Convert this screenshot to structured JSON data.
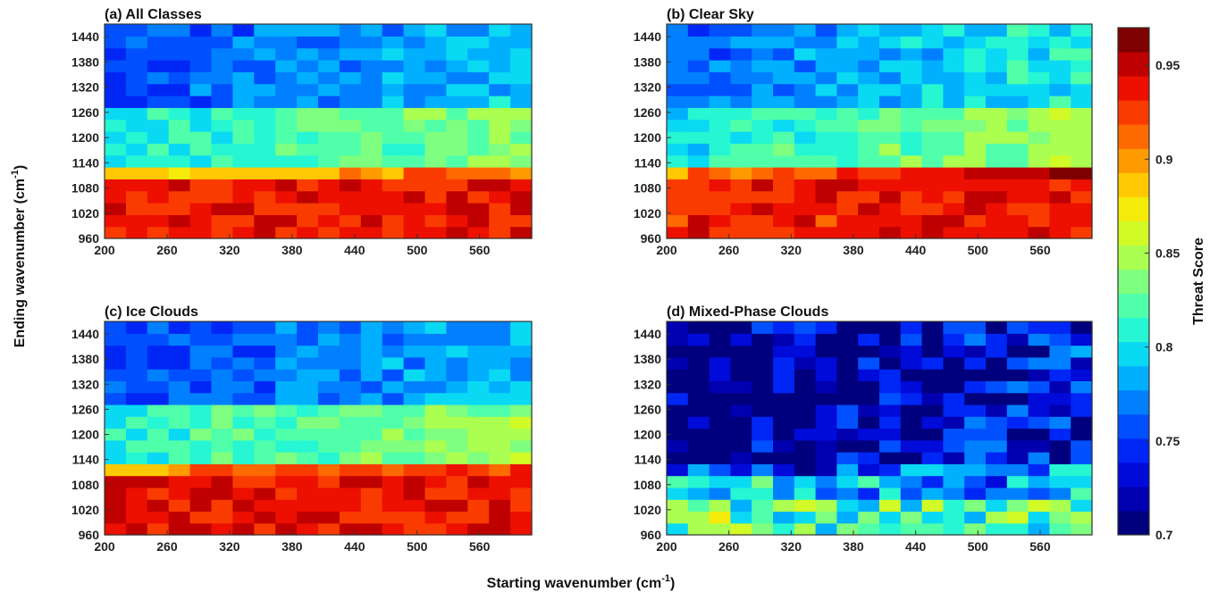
{
  "figure": {
    "xlabel_main": "Starting wavenumber (cm",
    "xlabel_sup": "-1",
    "xlabel_tail": ")",
    "ylabel_main": "Ending wavenumber (cm",
    "ylabel_sup": "-1",
    "ylabel_tail": ")",
    "colorbar_label": "Threat Score",
    "colorbar_ticks": [
      "0.7",
      "0.75",
      "0.8",
      "0.85",
      "0.9",
      "0.95"
    ],
    "colorbar_range": [
      0.7,
      0.97
    ],
    "colormap": [
      "#00007f",
      "#0000d0",
      "#0030ff",
      "#0080ff",
      "#00d0ff",
      "#30ffc7",
      "#7fff7f",
      "#c7ff30",
      "#ffe600",
      "#ff9a00",
      "#ff4a00",
      "#e80000",
      "#7f0000"
    ]
  },
  "chart_data": [
    {
      "type": "heatmap",
      "title": "(a) All Classes",
      "x_ticks": [
        200,
        260,
        320,
        380,
        440,
        500,
        560
      ],
      "y_ticks": [
        960,
        1020,
        1080,
        1140,
        1200,
        1260,
        1320,
        1380,
        1440
      ],
      "x_range": [
        200,
        610
      ],
      "y_range": [
        960,
        1470
      ],
      "bands": [
        {
          "from": 960,
          "to": 1110,
          "base": 0.935
        },
        {
          "from": 1110,
          "to": 1140,
          "base": 0.88
        },
        {
          "from": 1140,
          "to": 1270,
          "base": 0.805
        },
        {
          "from": 1270,
          "to": 1470,
          "base": 0.755
        }
      ],
      "trend": [
        0,
        0.035
      ],
      "noise": 0.016
    },
    {
      "type": "heatmap",
      "title": "(b) Clear Sky",
      "x_ticks": [
        200,
        260,
        320,
        380,
        440,
        500,
        560
      ],
      "y_ticks": [
        960,
        1020,
        1080,
        1140,
        1200,
        1260,
        1320,
        1380,
        1440
      ],
      "x_range": [
        200,
        610
      ],
      "y_range": [
        960,
        1470
      ],
      "bands": [
        {
          "from": 960,
          "to": 1110,
          "base": 0.935
        },
        {
          "from": 1110,
          "to": 1140,
          "base": 0.905
        },
        {
          "from": 1140,
          "to": 1270,
          "base": 0.8
        },
        {
          "from": 1270,
          "to": 1470,
          "base": 0.76
        }
      ],
      "trend": [
        0,
        0.05
      ],
      "noise": 0.018
    },
    {
      "type": "heatmap",
      "title": "(c) Ice Clouds",
      "x_ticks": [
        200,
        260,
        320,
        380,
        440,
        500,
        560
      ],
      "y_ticks": [
        960,
        1020,
        1080,
        1140,
        1200,
        1260,
        1320,
        1380,
        1440
      ],
      "x_range": [
        200,
        610
      ],
      "y_range": [
        960,
        1470
      ],
      "bands": [
        {
          "from": 960,
          "to": 1110,
          "base": 0.94
        },
        {
          "from": 1110,
          "to": 1140,
          "base": 0.9
        },
        {
          "from": 1140,
          "to": 1270,
          "base": 0.81
        },
        {
          "from": 1270,
          "to": 1470,
          "base": 0.755
        }
      ],
      "trend": [
        0,
        0.03
      ],
      "noise": 0.016
    },
    {
      "type": "heatmap",
      "title": "(d) Mixed-Phase Clouds",
      "x_ticks": [
        200,
        260,
        320,
        380,
        440,
        500,
        560
      ],
      "y_ticks": [
        960,
        1020,
        1080,
        1140,
        1200,
        1260,
        1320,
        1380,
        1440
      ],
      "x_range": [
        200,
        610
      ],
      "y_range": [
        960,
        1470
      ],
      "bands": [
        {
          "from": 960,
          "to": 1050,
          "base": 0.83
        },
        {
          "from": 1050,
          "to": 1110,
          "base": 0.79
        },
        {
          "from": 1110,
          "to": 1140,
          "base": 0.74
        },
        {
          "from": 1140,
          "to": 1470,
          "base": 0.7
        }
      ],
      "trend": [
        -0.01,
        0.04
      ],
      "noise": 0.045
    }
  ]
}
